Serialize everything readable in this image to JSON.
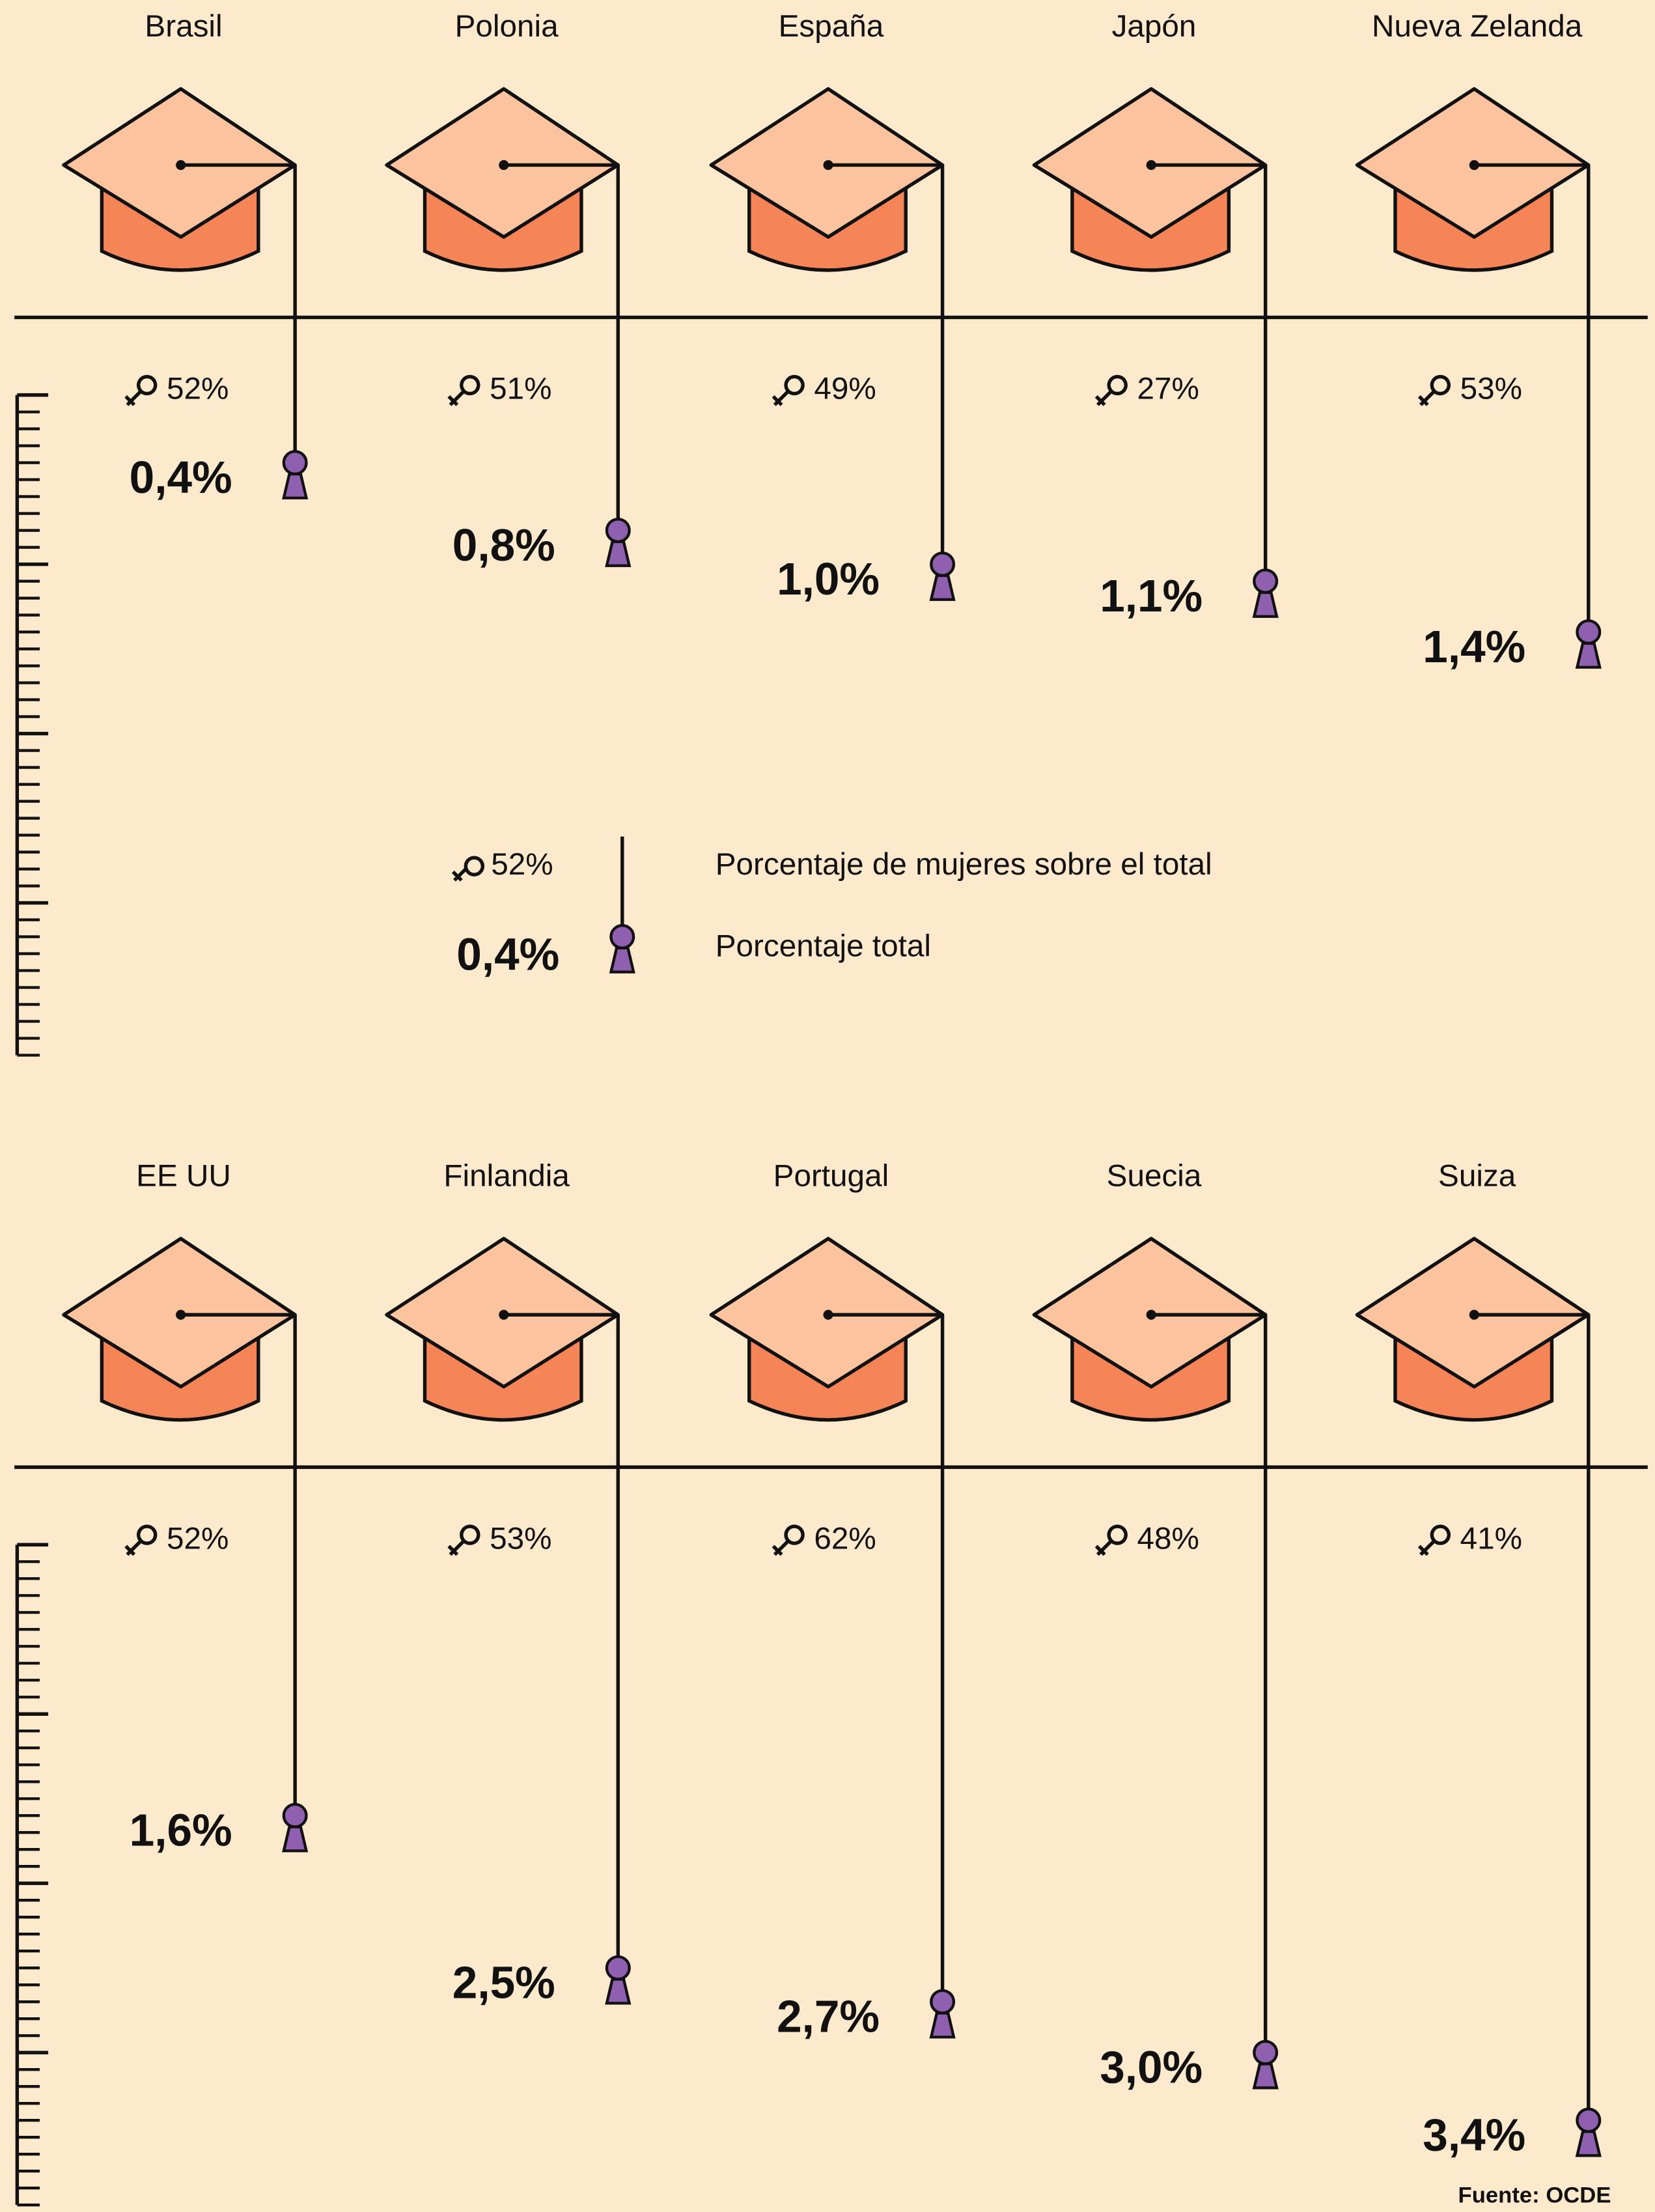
{
  "chart_data": [
    {
      "type": "pictogram",
      "categories": [
        "Brasil",
        "Polonia",
        "España",
        "Japón",
        "Nueva Zelanda"
      ],
      "series": [
        {
          "name": "Porcentaje total",
          "color": "#8f5fb0",
          "values": [
            0.4,
            0.8,
            1.0,
            1.1,
            1.4
          ],
          "value_labels": [
            "0,4%",
            "0,8%",
            "1,0%",
            "1,1%",
            "1,4%"
          ]
        },
        {
          "name": "Porcentaje de mujeres sobre el total",
          "values": [
            52,
            51,
            49,
            27,
            53
          ],
          "value_labels": [
            "52%",
            "51%",
            "49%",
            "27%",
            "53%"
          ]
        }
      ],
      "ylim": [
        0,
        3.9
      ],
      "yticks": [
        0,
        1,
        2,
        3
      ]
    },
    {
      "type": "pictogram",
      "categories": [
        "EE UU",
        "Finlandia",
        "Portugal",
        "Suecia",
        "Suiza"
      ],
      "series": [
        {
          "name": "Porcentaje total",
          "color": "#8f5fb0",
          "values": [
            1.6,
            2.5,
            2.7,
            3.0,
            3.4
          ],
          "value_labels": [
            "1,6%",
            "2,5%",
            "2,7%",
            "3,0%",
            "3,4%"
          ]
        },
        {
          "name": "Porcentaje de mujeres sobre el total",
          "values": [
            52,
            53,
            62,
            48,
            41
          ],
          "value_labels": [
            "52%",
            "53%",
            "62%",
            "48%",
            "41%"
          ]
        }
      ],
      "ylim": [
        0,
        3.9
      ],
      "yticks": [
        0,
        1,
        2,
        3
      ],
      "source": "Fuente: OCDE"
    }
  ]
}
